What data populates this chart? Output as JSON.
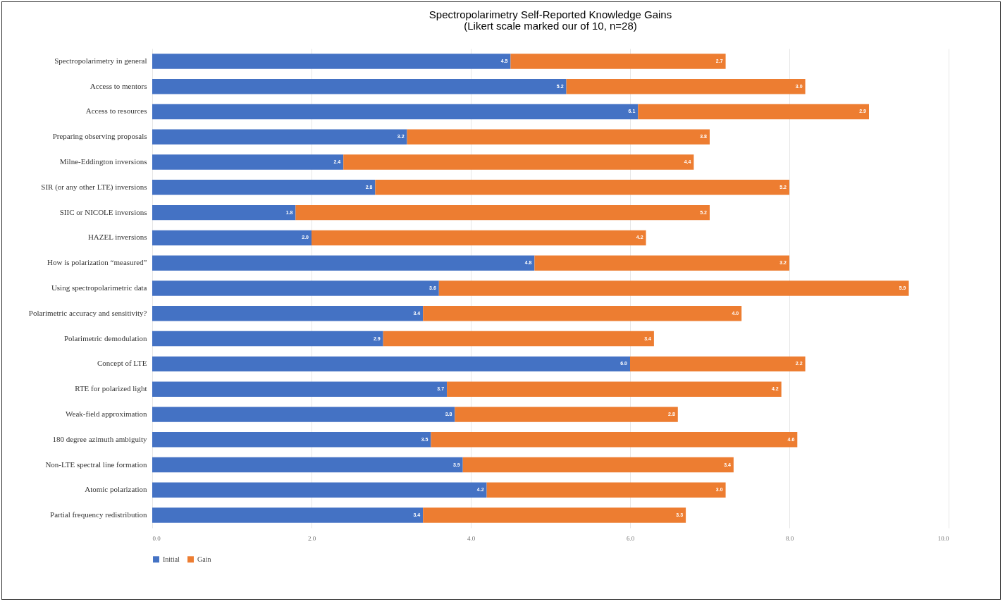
{
  "chart_data": {
    "type": "bar",
    "orientation": "horizontal",
    "stacked": true,
    "title": "Spectropolarimetry Self-Reported Knowledge Gains",
    "subtitle": "(Likert scale marked our of 10, n=28)",
    "categories": [
      "Spectropolarimetry in general",
      "Access to mentors",
      "Access to resources",
      "Preparing observing proposals",
      "Milne-Eddington inversions",
      "SIR (or any other LTE) inversions",
      "SIIC or NICOLE inversions",
      "HAZEL inversions",
      "How is polarization “measured”",
      "Using spectropolarimetric data",
      "Polarimetric accuracy and sensitivity?",
      "Polarimetric demodulation",
      "Concept of LTE",
      "RTE for polarized light",
      "Weak-field approximation",
      "180 degree azimuth ambiguity",
      "Non-LTE spectral line formation",
      "Atomic polarization",
      "Partial frequency redistribution"
    ],
    "series": [
      {
        "name": "Initial",
        "color": "#4472c4",
        "values": [
          4.5,
          5.2,
          6.1,
          3.2,
          2.4,
          2.8,
          1.8,
          2.0,
          4.8,
          3.6,
          3.4,
          2.9,
          6.0,
          3.7,
          3.8,
          3.5,
          3.9,
          4.2,
          3.4
        ],
        "value_labels": [
          "4.5",
          "5.2",
          "6.1",
          "3.2",
          "2.4",
          "2.8",
          "1.8",
          "2.0",
          "4.8",
          "3.6",
          "3.4",
          "2.9",
          "6.0",
          "3.7",
          "3.8",
          "3.5",
          "3.9",
          "4.2",
          "3.4"
        ]
      },
      {
        "name": "Gain",
        "color": "#ed7d31",
        "values": [
          2.7,
          3.0,
          2.9,
          3.8,
          4.4,
          5.2,
          5.2,
          4.2,
          3.2,
          5.9,
          4.0,
          3.4,
          2.2,
          4.2,
          2.8,
          4.6,
          3.4,
          3.0,
          3.3
        ],
        "value_labels": [
          "2.7",
          "3.0",
          "2.9",
          "3.8",
          "4.4",
          "5.2",
          "5.2",
          "4.2",
          "3.2",
          "5.9",
          "4.0",
          "3.4",
          "2.2",
          "4.2",
          "2.8",
          "4.6",
          "3.4",
          "3.0",
          "3.3"
        ]
      }
    ],
    "xlim": [
      0,
      10
    ],
    "xticks": [
      {
        "value": 0,
        "label": "0.0"
      },
      {
        "value": 2,
        "label": "2.0"
      },
      {
        "value": 4,
        "label": "4.0"
      },
      {
        "value": 6,
        "label": "6.0"
      },
      {
        "value": 8,
        "label": "8.0"
      },
      {
        "value": 10,
        "label": "10.0"
      }
    ],
    "grid": "x",
    "legend": "bottom"
  }
}
